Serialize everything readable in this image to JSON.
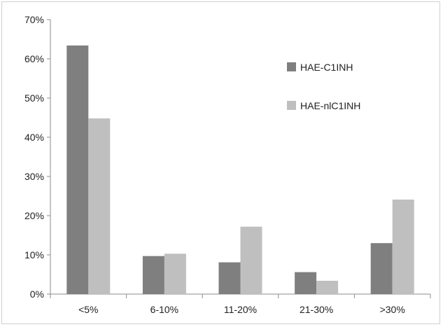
{
  "chart_data": {
    "type": "bar",
    "title": "",
    "xlabel": "",
    "ylabel": "",
    "categories": [
      "<5%",
      "6-10%",
      "11-20%",
      "21-30%",
      ">30%"
    ],
    "series": [
      {
        "name": "HAE-C1INH",
        "color": "#7f7f7f",
        "values": [
          63.4,
          9.7,
          8.1,
          5.6,
          13.0
        ]
      },
      {
        "name": "HAE-nlC1INH",
        "color": "#bfbfbf",
        "values": [
          44.8,
          10.3,
          17.2,
          3.4,
          24.1
        ]
      }
    ],
    "ylim": [
      0,
      70
    ],
    "yticks": [
      "0%",
      "10%",
      "20%",
      "30%",
      "40%",
      "50%",
      "60%",
      "70%"
    ],
    "grid": false,
    "legend_position": "top-right"
  }
}
